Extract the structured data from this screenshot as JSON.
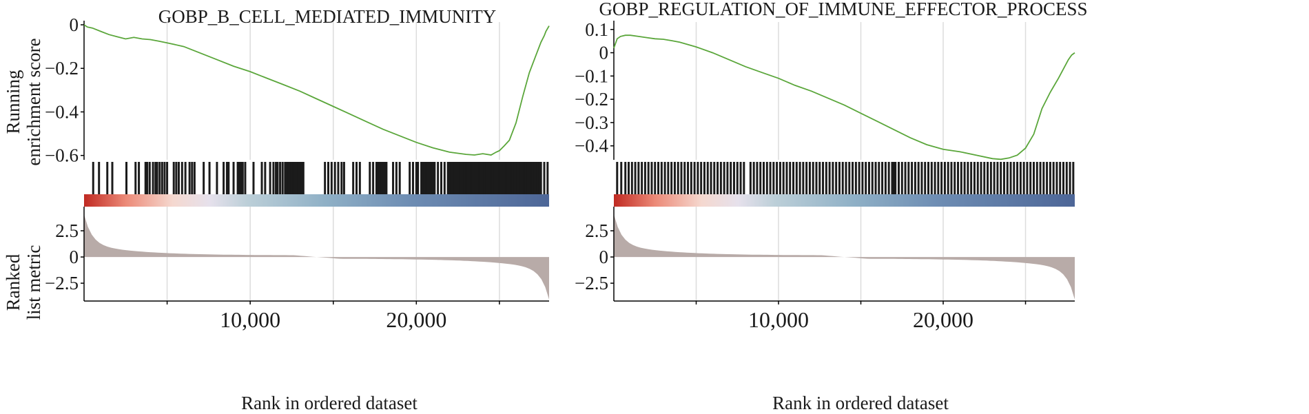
{
  "chart_data": [
    {
      "type": "line",
      "title": "GOBP_B_CELL_MEDIATED_IMMUNITY",
      "ylabel_top": [
        "Running",
        "enrichment score"
      ],
      "ylabel_bottom": [
        "Ranked",
        "list metric"
      ],
      "xlabel": "Rank in ordered dataset",
      "x_ticks": [
        5000,
        10000,
        15000,
        20000,
        25000
      ],
      "x_tick_labels": [
        "10,000",
        "20,000"
      ],
      "x_tick_label_values": [
        10000,
        20000
      ],
      "xlim": [
        0,
        27990
      ],
      "es_ylim": [
        -0.62,
        0.0
      ],
      "es_ticks": [
        0,
        -0.2,
        -0.4,
        -0.6
      ],
      "es_tick_labels": [
        "0",
        "−0.2",
        "−0.4",
        "−0.6"
      ],
      "metric_ylim": [
        -4.2,
        4.8
      ],
      "metric_ticks": [
        2.5,
        0,
        -2.5
      ],
      "metric_tick_labels": [
        "2.5",
        "0",
        "−2.5"
      ],
      "running_es": {
        "x": [
          0,
          200,
          500,
          1000,
          1500,
          2000,
          2500,
          3000,
          3500,
          4000,
          4500,
          5000,
          6000,
          7000,
          8000,
          9000,
          10000,
          11000,
          12000,
          13000,
          14000,
          15000,
          16000,
          17000,
          18000,
          19000,
          20000,
          21000,
          22000,
          23000,
          23500,
          24000,
          24500,
          24800,
          25000,
          25300,
          25600,
          26000,
          26400,
          26800,
          27200,
          27500,
          27700,
          27800,
          27990
        ],
        "y": [
          0.0,
          -0.01,
          -0.015,
          -0.03,
          -0.045,
          -0.055,
          -0.065,
          -0.058,
          -0.065,
          -0.068,
          -0.075,
          -0.083,
          -0.1,
          -0.13,
          -0.16,
          -0.19,
          -0.215,
          -0.245,
          -0.275,
          -0.305,
          -0.34,
          -0.375,
          -0.41,
          -0.445,
          -0.48,
          -0.51,
          -0.54,
          -0.565,
          -0.585,
          -0.595,
          -0.598,
          -0.592,
          -0.598,
          -0.585,
          -0.578,
          -0.555,
          -0.53,
          -0.45,
          -0.33,
          -0.22,
          -0.14,
          -0.08,
          -0.05,
          -0.03,
          -0.005
        ]
      },
      "hits": [
        550,
        900,
        1400,
        1700,
        2550,
        3100,
        3300,
        3700,
        3800,
        3950,
        4150,
        4300,
        4400,
        4550,
        4700,
        4850,
        5000,
        5400,
        5550,
        5700,
        5900,
        6100,
        6350,
        6500,
        6650,
        7200,
        7550,
        8000,
        8400,
        8600,
        8700,
        9000,
        9250,
        9350,
        9450,
        9550,
        9700,
        10200,
        10700,
        10900,
        11200,
        11400,
        11550,
        11650,
        11800,
        11950,
        12100,
        12200,
        12300,
        12400,
        12500,
        12600,
        12700,
        12800,
        12900,
        13000,
        13100,
        13200,
        14500,
        14700,
        14900,
        15100,
        15300,
        15500,
        15650,
        16200,
        16400,
        16600,
        17200,
        17400,
        17600,
        17700,
        17800,
        17900,
        18000,
        18100,
        18200,
        18600,
        18800,
        19000,
        19600,
        19800,
        20000,
        20100,
        20300,
        20400,
        20500,
        20600,
        20700,
        20800,
        20900,
        21000,
        21100,
        21300,
        21500,
        21700,
        21900,
        22000,
        22100,
        22200,
        22300,
        22400,
        22500,
        22600,
        22700,
        22800,
        22900,
        23000,
        23100,
        23200,
        23300,
        23400,
        23500,
        23600,
        23700,
        23800,
        23900,
        24000,
        24100,
        24200,
        24300,
        24400,
        24500,
        24600,
        24700,
        24800,
        24900,
        25000,
        25100,
        25200,
        25300,
        25400,
        25500,
        25600,
        25700,
        25800,
        25900,
        26000,
        26100,
        26200,
        26300,
        26400,
        26500,
        26600,
        26700,
        26800,
        26900,
        27000,
        27100,
        27200,
        27300,
        27400,
        27500,
        27700,
        27900
      ]
    },
    {
      "type": "line",
      "title": "GOBP_REGULATION_OF_IMMUNE_EFFECTOR_PROCESS",
      "ylabel_top": [],
      "ylabel_bottom": [],
      "xlabel": "Rank in ordered dataset",
      "x_ticks": [
        5000,
        10000,
        15000,
        20000,
        25000
      ],
      "x_tick_labels": [
        "10,000",
        "20,000"
      ],
      "x_tick_label_values": [
        10000,
        20000
      ],
      "xlim": [
        0,
        27990
      ],
      "es_ylim": [
        -0.46,
        0.12
      ],
      "es_ticks": [
        0.1,
        0,
        -0.1,
        -0.2,
        -0.3,
        -0.4
      ],
      "es_tick_labels": [
        "0.1",
        "0",
        "−0.1",
        "−0.2",
        "−0.3",
        "−0.4"
      ],
      "metric_ylim": [
        -4.2,
        4.8
      ],
      "metric_ticks": [
        2.5,
        0,
        -2.5
      ],
      "metric_tick_labels": [
        "2.5",
        "0",
        "−2.5"
      ],
      "running_es": {
        "x": [
          0,
          200,
          400,
          700,
          1000,
          1500,
          2000,
          2500,
          3000,
          3500,
          4000,
          5000,
          6000,
          7000,
          8000,
          9000,
          10000,
          11000,
          12000,
          13000,
          14000,
          15000,
          16000,
          17000,
          18000,
          19000,
          20000,
          21000,
          22000,
          23000,
          23500,
          24000,
          24500,
          25000,
          25500,
          26000,
          26500,
          27000,
          27300,
          27600,
          27800,
          27990
        ],
        "y": [
          0.02,
          0.06,
          0.07,
          0.075,
          0.075,
          0.07,
          0.065,
          0.06,
          0.058,
          0.052,
          0.045,
          0.025,
          0.0,
          -0.03,
          -0.06,
          -0.085,
          -0.11,
          -0.14,
          -0.165,
          -0.195,
          -0.225,
          -0.26,
          -0.295,
          -0.33,
          -0.365,
          -0.395,
          -0.415,
          -0.425,
          -0.44,
          -0.455,
          -0.458,
          -0.452,
          -0.44,
          -0.41,
          -0.35,
          -0.24,
          -0.17,
          -0.11,
          -0.07,
          -0.03,
          -0.01,
          0.0
        ]
      },
      "hits": [
        200,
        450,
        700,
        900,
        1100,
        1300,
        1500,
        1700,
        1900,
        2100,
        2300,
        2500,
        2700,
        2900,
        3100,
        3300,
        3500,
        3700,
        3900,
        4100,
        4300,
        4500,
        4700,
        4900,
        5100,
        5300,
        5500,
        5700,
        5900,
        6100,
        6300,
        6500,
        6700,
        6900,
        7100,
        7300,
        7500,
        7700,
        7900,
        8300,
        8500,
        8700,
        8900,
        9100,
        9300,
        9500,
        9700,
        9900,
        10100,
        10300,
        10500,
        10700,
        10900,
        11100,
        11300,
        11500,
        11700,
        11900,
        12100,
        12300,
        12500,
        12700,
        12900,
        13100,
        13300,
        13500,
        13700,
        13900,
        14100,
        14300,
        14500,
        14700,
        14900,
        15100,
        15300,
        15500,
        15700,
        15900,
        16100,
        16300,
        16500,
        16700,
        16900,
        17000,
        17100,
        17300,
        17500,
        17700,
        17900,
        18100,
        18300,
        18500,
        18700,
        18900,
        19100,
        19300,
        19500,
        19700,
        19900,
        20100,
        20300,
        20500,
        20700,
        20900,
        21100,
        21300,
        21500,
        21700,
        21900,
        22100,
        22300,
        22500,
        22700,
        22900,
        23100,
        23300,
        23500,
        23700,
        23900,
        24100,
        24300,
        24500,
        24700,
        24900,
        25100,
        25300,
        25500,
        25700,
        25900,
        26100,
        26300,
        26500,
        26700,
        26900,
        27100,
        27300,
        27500,
        27700,
        27900
      ]
    }
  ],
  "colors": {
    "line": "#5aa63a",
    "hit": "#1b1b1b",
    "metric_fill": "#b8aba8",
    "grid": "#dcdcdc",
    "gradient": [
      "#c02a22",
      "#ec8a78",
      "#f5d8cf",
      "#e6e1ec",
      "#bccfd8",
      "#8fb0c6",
      "#6e8db3",
      "#4d6697"
    ]
  }
}
